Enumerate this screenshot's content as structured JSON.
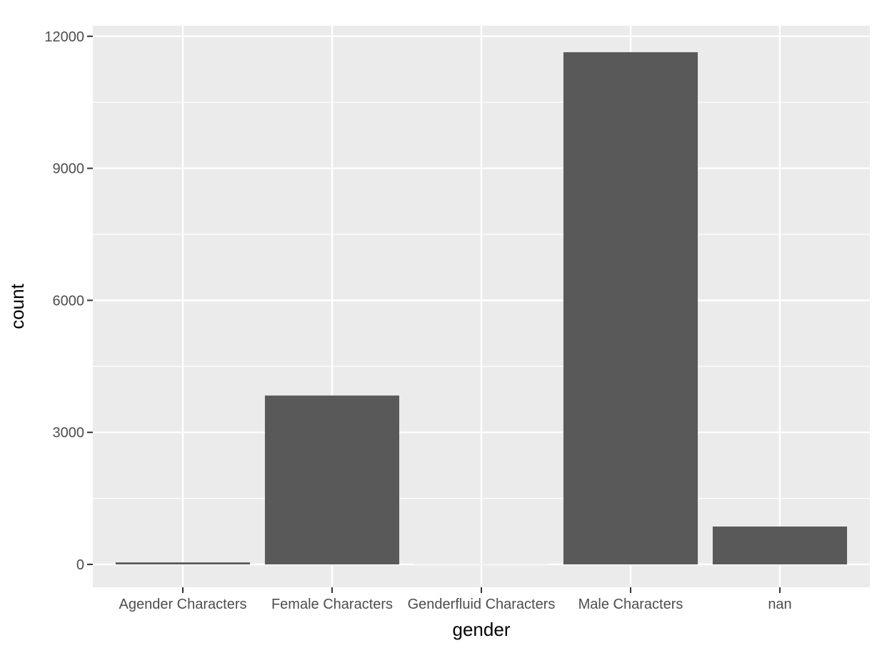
{
  "chart_data": {
    "type": "bar",
    "title": "",
    "xlabel": "gender",
    "ylabel": "count",
    "categories": [
      "Agender Characters",
      "Female Characters",
      "Genderfluid Characters",
      "Male Characters",
      "nan"
    ],
    "values": [
      45,
      3837,
      2,
      11638,
      860
    ],
    "ylim": [
      -520,
      12240
    ],
    "yticks": [
      0,
      3000,
      6000,
      9000,
      12000
    ],
    "ytick_labels": [
      "0",
      "3000",
      "6000",
      "9000",
      "12000"
    ],
    "grid": true,
    "legend": "none",
    "colors": {
      "panel": "#ebebeb",
      "bar": "#595959",
      "grid": "#ffffff",
      "tick": "#333333"
    }
  }
}
